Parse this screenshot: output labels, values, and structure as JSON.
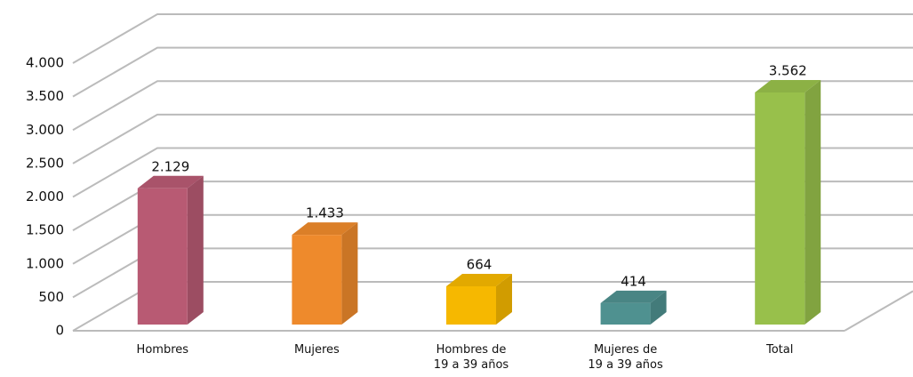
{
  "chart_data": {
    "type": "bar3d",
    "categories": [
      "Hombres",
      "Mujeres",
      "Hombres de\n19 a 39 años",
      "Mujeres de\n19 a 39 años",
      "Total"
    ],
    "values": [
      2129,
      1433,
      664,
      414,
      3562
    ],
    "value_labels": [
      "2.129",
      "1.433",
      "664",
      "414",
      "3.562"
    ],
    "colors": [
      "#b85a73",
      "#ee8a2c",
      "#f6b800",
      "#4f9190",
      "#98c04b"
    ],
    "ylim": [
      0,
      4000
    ],
    "yticks": [
      0,
      500,
      {
        "value": 1000,
        "label": "1.000"
      },
      {
        "value": 1500,
        "label": "1.500"
      },
      {
        "value": 2000,
        "label": "2.000"
      },
      {
        "value": 2500,
        "label": "2.500"
      },
      {
        "value": 3000,
        "label": "3.000"
      },
      {
        "value": 3500,
        "label": "3.500"
      },
      {
        "value": 4000,
        "label": "4.000"
      }
    ],
    "grid": true
  }
}
